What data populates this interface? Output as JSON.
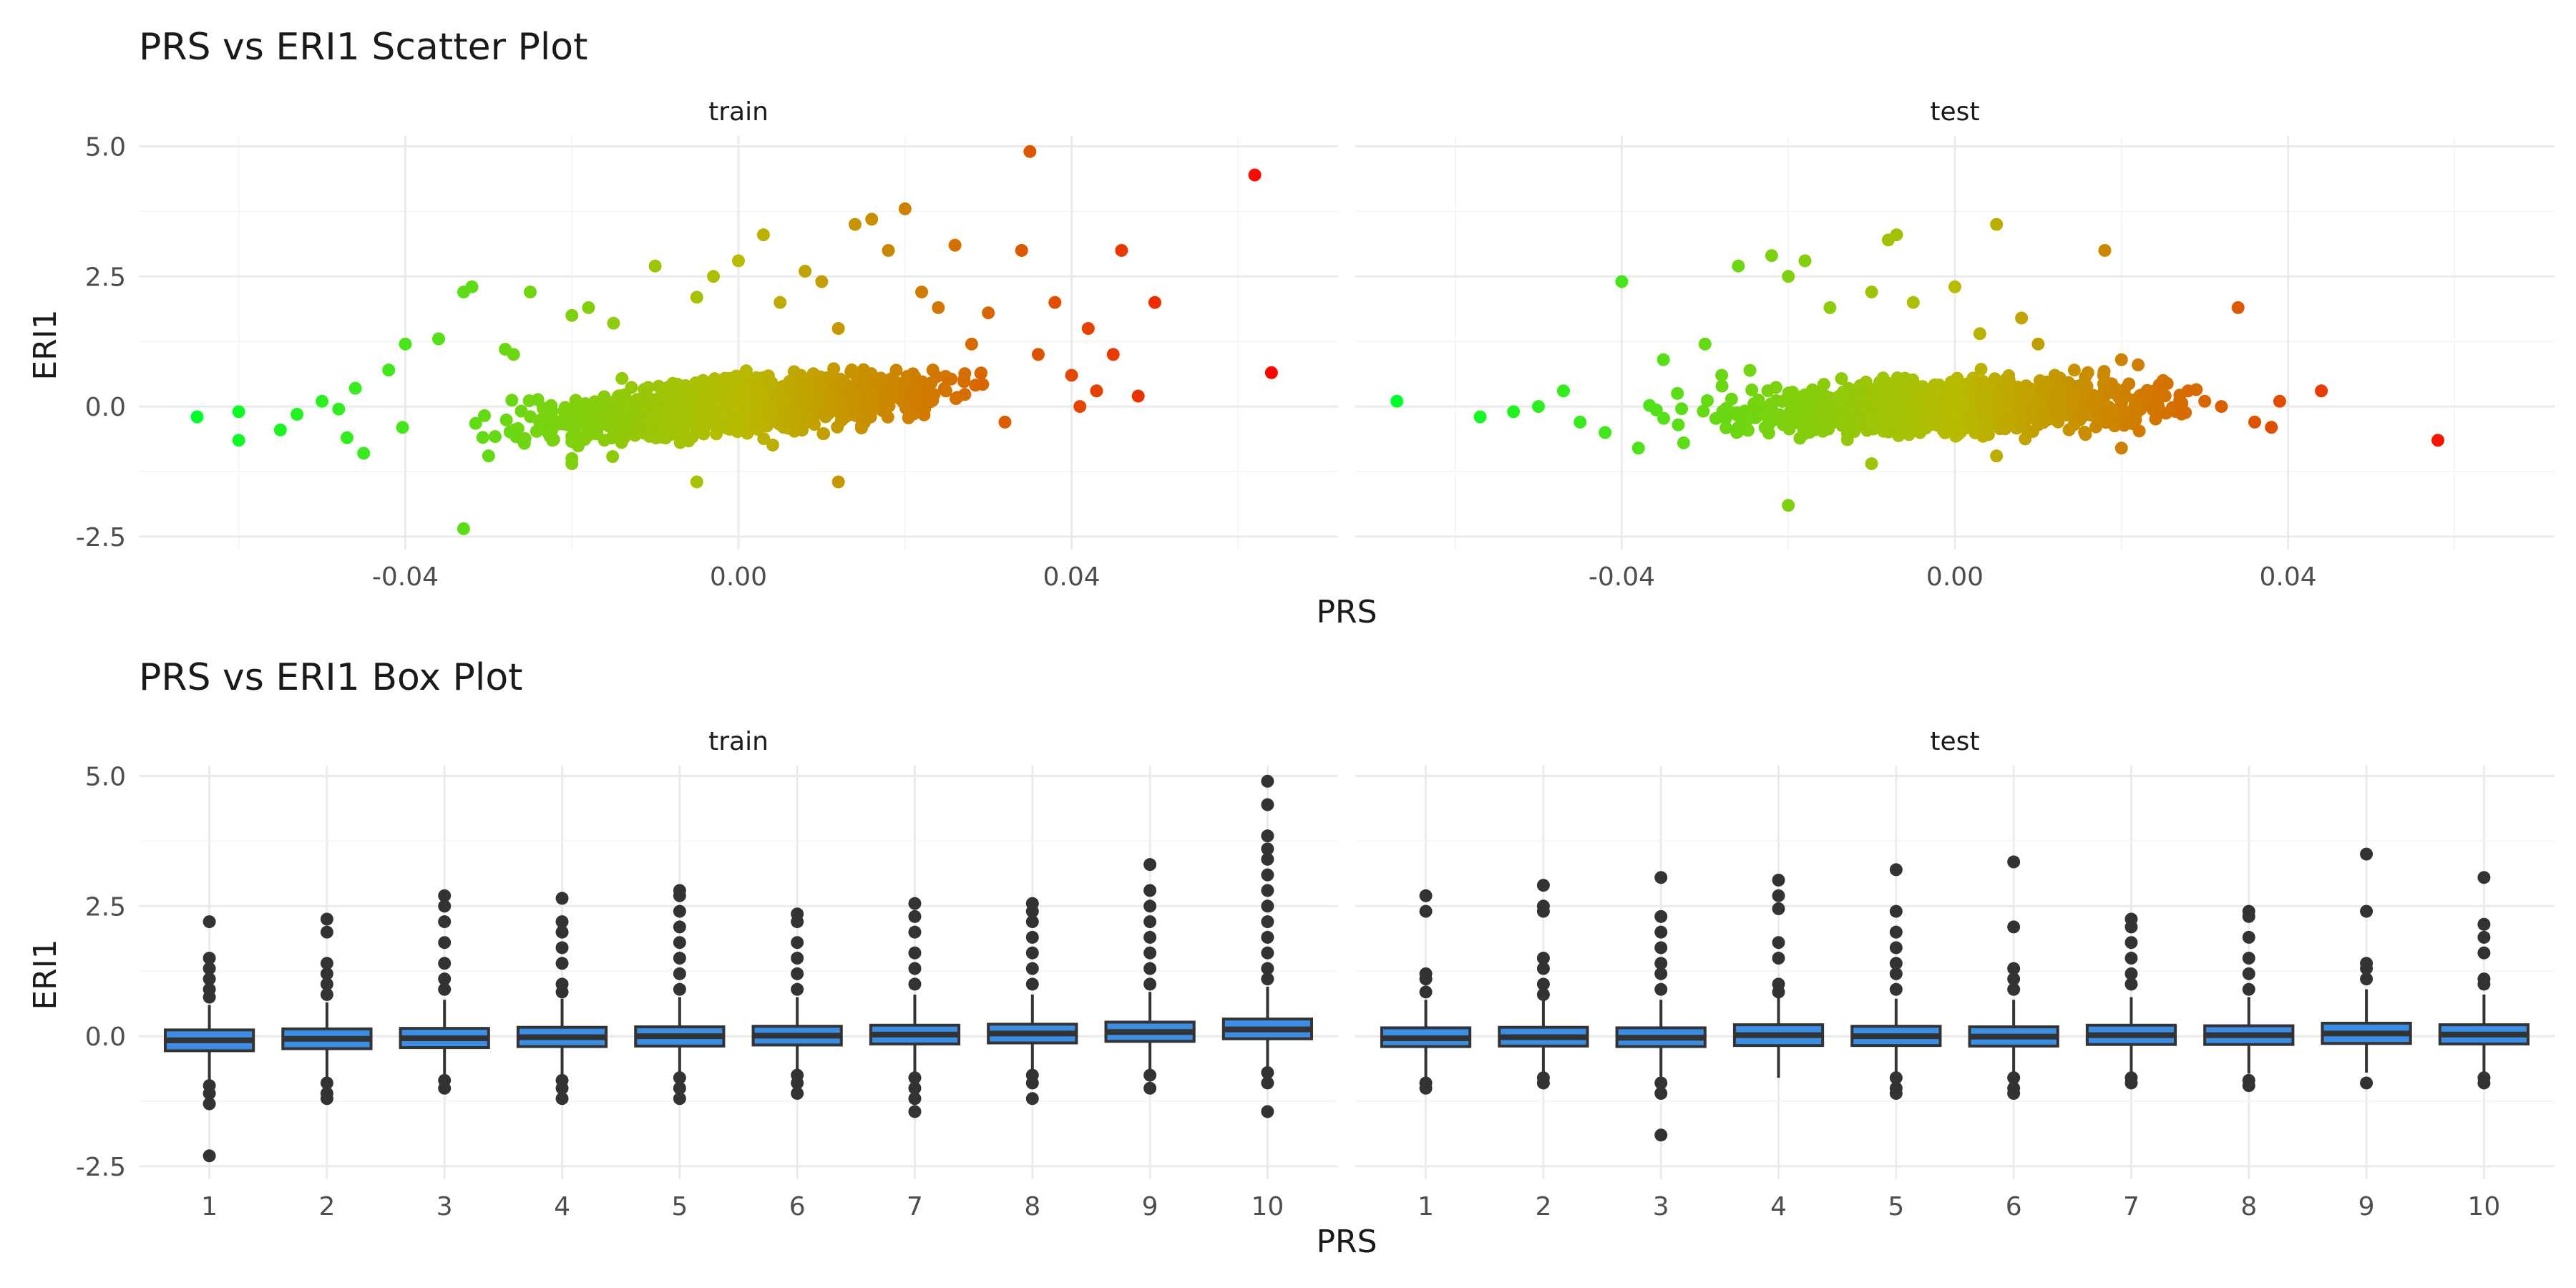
{
  "chart_data": [
    {
      "type": "scatter",
      "title": "PRS vs ERI1 Scatter Plot",
      "xlabel": "PRS",
      "ylabel": "ERI1",
      "xlim": [
        -0.072,
        0.072
      ],
      "ylim": [
        -2.75,
        5.2
      ],
      "x_ticks": [
        -0.04,
        0.0,
        0.04
      ],
      "x_tick_labels": [
        "-0.04",
        "0.00",
        "0.04"
      ],
      "y_ticks": [
        -2.5,
        0.0,
        2.5,
        5.0
      ],
      "y_tick_labels": [
        "-2.5",
        "0.0",
        "2.5",
        "5.0"
      ],
      "grid": true,
      "legend": "none",
      "color_gradient": {
        "low": "#00ff2a",
        "mid": "#b8bb00",
        "high": "#ff0000"
      },
      "panels": [
        {
          "name": "train",
          "points": [
            [
              -0.065,
              -0.2
            ],
            [
              -0.06,
              -0.1
            ],
            [
              -0.06,
              -0.65
            ],
            [
              -0.055,
              -0.45
            ],
            [
              -0.053,
              -0.15
            ],
            [
              -0.05,
              0.1
            ],
            [
              -0.048,
              -0.05
            ],
            [
              -0.047,
              -0.6
            ],
            [
              -0.046,
              0.35
            ],
            [
              -0.045,
              -0.9
            ],
            [
              -0.042,
              0.7
            ],
            [
              -0.04,
              1.2
            ],
            [
              -0.036,
              1.3
            ],
            [
              -0.033,
              2.2
            ],
            [
              -0.032,
              2.3
            ],
            [
              -0.028,
              1.1
            ],
            [
              -0.027,
              1.0
            ],
            [
              -0.025,
              2.2
            ],
            [
              -0.02,
              1.75
            ],
            [
              -0.02,
              -1.0
            ],
            [
              -0.018,
              1.9
            ],
            [
              -0.015,
              1.6
            ],
            [
              -0.01,
              2.7
            ],
            [
              -0.005,
              2.1
            ],
            [
              -0.003,
              2.5
            ],
            [
              0.0,
              2.8
            ],
            [
              0.003,
              3.3
            ],
            [
              0.005,
              2.0
            ],
            [
              0.008,
              2.6
            ],
            [
              0.01,
              2.4
            ],
            [
              0.012,
              1.5
            ],
            [
              0.014,
              3.5
            ],
            [
              0.016,
              3.6
            ],
            [
              0.018,
              3.0
            ],
            [
              0.02,
              3.8
            ],
            [
              0.022,
              2.2
            ],
            [
              0.024,
              1.9
            ],
            [
              0.026,
              3.1
            ],
            [
              0.028,
              1.2
            ],
            [
              0.03,
              1.8
            ],
            [
              0.032,
              -0.3
            ],
            [
              0.034,
              3.0
            ],
            [
              0.035,
              4.9
            ],
            [
              0.036,
              1.0
            ],
            [
              0.038,
              2.0
            ],
            [
              0.04,
              0.6
            ],
            [
              0.041,
              0.0
            ],
            [
              0.042,
              1.5
            ],
            [
              0.043,
              0.3
            ],
            [
              0.045,
              1.0
            ],
            [
              0.046,
              3.0
            ],
            [
              0.048,
              0.2
            ],
            [
              0.05,
              2.0
            ],
            [
              0.062,
              4.45
            ],
            [
              0.064,
              0.65
            ],
            [
              -0.033,
              -2.35
            ],
            [
              -0.005,
              -1.45
            ],
            [
              0.012,
              -1.45
            ],
            [
              -0.02,
              -1.1
            ],
            [
              -0.03,
              -0.95
            ]
          ]
        },
        {
          "name": "test",
          "points": [
            [
              -0.067,
              0.1
            ],
            [
              -0.057,
              -0.2
            ],
            [
              -0.053,
              -0.1
            ],
            [
              -0.05,
              0.0
            ],
            [
              -0.047,
              0.3
            ],
            [
              -0.045,
              -0.3
            ],
            [
              -0.042,
              -0.5
            ],
            [
              -0.04,
              2.4
            ],
            [
              -0.038,
              -0.8
            ],
            [
              -0.035,
              0.9
            ],
            [
              -0.03,
              1.2
            ],
            [
              -0.028,
              0.6
            ],
            [
              -0.026,
              2.7
            ],
            [
              -0.022,
              2.9
            ],
            [
              -0.02,
              2.5
            ],
            [
              -0.018,
              2.8
            ],
            [
              -0.015,
              1.9
            ],
            [
              -0.01,
              2.2
            ],
            [
              -0.008,
              3.2
            ],
            [
              -0.007,
              3.3
            ],
            [
              -0.005,
              2.0
            ],
            [
              0.0,
              2.3
            ],
            [
              0.003,
              1.4
            ],
            [
              0.005,
              3.5
            ],
            [
              0.008,
              1.7
            ],
            [
              0.01,
              1.2
            ],
            [
              0.012,
              0.6
            ],
            [
              0.015,
              0.4
            ],
            [
              0.018,
              3.0
            ],
            [
              0.02,
              0.9
            ],
            [
              0.022,
              0.8
            ],
            [
              0.025,
              0.5
            ],
            [
              0.028,
              0.3
            ],
            [
              0.03,
              0.1
            ],
            [
              0.032,
              0.0
            ],
            [
              0.034,
              1.9
            ],
            [
              0.036,
              -0.3
            ],
            [
              0.038,
              -0.4
            ],
            [
              0.039,
              0.1
            ],
            [
              0.044,
              0.3
            ],
            [
              0.058,
              -0.65
            ],
            [
              -0.02,
              -1.9
            ],
            [
              -0.01,
              -1.1
            ],
            [
              0.005,
              -0.95
            ],
            [
              0.02,
              -0.8
            ]
          ]
        }
      ]
    },
    {
      "type": "box",
      "title": "PRS vs ERI1 Box Plot",
      "xlabel": "PRS",
      "ylabel": "ERI1",
      "categories": [
        "1",
        "2",
        "3",
        "4",
        "5",
        "6",
        "7",
        "8",
        "9",
        "10"
      ],
      "ylim": [
        -2.75,
        5.2
      ],
      "y_ticks": [
        -2.5,
        0.0,
        2.5,
        5.0
      ],
      "y_tick_labels": [
        "-2.5",
        "0.0",
        "2.5",
        "5.0"
      ],
      "grid": true,
      "box_fill": "#3a8ee6",
      "box_stroke": "#333333",
      "panels": [
        {
          "name": "train",
          "boxes": [
            {
              "category": "1",
              "q1": -0.28,
              "median": -0.08,
              "q3": 0.12,
              "whisker_low": -0.85,
              "whisker_high": 0.6,
              "outliers": [
                2.2,
                1.5,
                1.3,
                1.1,
                0.9,
                0.75,
                -0.95,
                -1.1,
                -1.3,
                -2.3
              ]
            },
            {
              "category": "2",
              "q1": -0.24,
              "median": -0.05,
              "q3": 0.14,
              "whisker_low": -0.8,
              "whisker_high": 0.65,
              "outliers": [
                2.25,
                2.0,
                1.4,
                1.2,
                1.0,
                0.8,
                -0.9,
                -1.1,
                -1.2
              ]
            },
            {
              "category": "3",
              "q1": -0.22,
              "median": -0.04,
              "q3": 0.15,
              "whisker_low": -0.8,
              "whisker_high": 0.7,
              "outliers": [
                2.7,
                2.5,
                2.2,
                1.8,
                1.4,
                1.1,
                0.9,
                -0.85,
                -1.0
              ]
            },
            {
              "category": "4",
              "q1": -0.2,
              "median": -0.02,
              "q3": 0.17,
              "whisker_low": -0.78,
              "whisker_high": 0.72,
              "outliers": [
                2.65,
                2.2,
                2.0,
                1.7,
                1.4,
                1.0,
                0.85,
                -0.85,
                -1.0,
                -1.2
              ]
            },
            {
              "category": "5",
              "q1": -0.19,
              "median": 0.0,
              "q3": 0.18,
              "whisker_low": -0.75,
              "whisker_high": 0.75,
              "outliers": [
                2.8,
                2.7,
                2.4,
                2.1,
                1.8,
                1.5,
                1.2,
                0.9,
                -0.8,
                -1.0,
                -1.2
              ]
            },
            {
              "category": "6",
              "q1": -0.17,
              "median": 0.01,
              "q3": 0.19,
              "whisker_low": -0.72,
              "whisker_high": 0.75,
              "outliers": [
                2.35,
                2.2,
                1.8,
                1.5,
                1.2,
                0.9,
                -0.75,
                -0.9,
                -1.1
              ]
            },
            {
              "category": "7",
              "q1": -0.15,
              "median": 0.03,
              "q3": 0.21,
              "whisker_low": -0.7,
              "whisker_high": 0.8,
              "outliers": [
                2.55,
                2.3,
                2.0,
                1.6,
                1.3,
                1.0,
                -0.8,
                -1.0,
                -1.2,
                -1.45
              ]
            },
            {
              "category": "8",
              "q1": -0.13,
              "median": 0.05,
              "q3": 0.23,
              "whisker_low": -0.68,
              "whisker_high": 0.8,
              "outliers": [
                2.55,
                2.4,
                2.2,
                1.9,
                1.6,
                1.3,
                1.0,
                -0.75,
                -0.9,
                -1.2
              ]
            },
            {
              "category": "9",
              "q1": -0.1,
              "median": 0.08,
              "q3": 0.27,
              "whisker_low": -0.65,
              "whisker_high": 0.85,
              "outliers": [
                3.3,
                2.8,
                2.5,
                2.2,
                1.9,
                1.6,
                1.3,
                1.0,
                -0.75,
                -1.0
              ]
            },
            {
              "category": "10",
              "q1": -0.05,
              "median": 0.13,
              "q3": 0.33,
              "whisker_low": -0.6,
              "whisker_high": 0.95,
              "outliers": [
                4.9,
                4.45,
                3.85,
                3.6,
                3.4,
                3.1,
                2.8,
                2.5,
                2.2,
                1.9,
                1.6,
                1.3,
                1.1,
                -0.7,
                -0.9,
                -1.45
              ]
            }
          ]
        },
        {
          "name": "test",
          "boxes": [
            {
              "category": "1",
              "q1": -0.2,
              "median": -0.04,
              "q3": 0.16,
              "whisker_low": -0.8,
              "whisker_high": 0.7,
              "outliers": [
                2.7,
                2.4,
                1.2,
                1.1,
                0.85,
                -0.9,
                -1.0
              ]
            },
            {
              "category": "2",
              "q1": -0.19,
              "median": -0.02,
              "q3": 0.17,
              "whisker_low": -0.75,
              "whisker_high": 0.7,
              "outliers": [
                2.9,
                2.5,
                2.4,
                1.5,
                1.3,
                1.0,
                0.8,
                -0.8,
                -0.9
              ]
            },
            {
              "category": "3",
              "q1": -0.2,
              "median": -0.03,
              "q3": 0.16,
              "whisker_low": -0.78,
              "whisker_high": 0.7,
              "outliers": [
                3.05,
                2.3,
                2.0,
                1.7,
                1.4,
                1.2,
                0.9,
                -0.9,
                -1.1,
                -1.9
              ]
            },
            {
              "category": "4",
              "q1": -0.18,
              "median": 0.02,
              "q3": 0.22,
              "whisker_low": -0.8,
              "whisker_high": 0.75,
              "outliers": [
                3.0,
                2.7,
                2.45,
                1.8,
                1.5,
                1.0,
                0.85
              ]
            },
            {
              "category": "5",
              "q1": -0.18,
              "median": 0.0,
              "q3": 0.19,
              "whisker_low": -0.75,
              "whisker_high": 0.72,
              "outliers": [
                3.2,
                2.4,
                2.0,
                1.7,
                1.4,
                1.2,
                0.9,
                -0.8,
                -1.0,
                -1.1
              ]
            },
            {
              "category": "6",
              "q1": -0.19,
              "median": -0.01,
              "q3": 0.18,
              "whisker_low": -0.76,
              "whisker_high": 0.7,
              "outliers": [
                3.35,
                2.1,
                1.3,
                1.1,
                0.9,
                -0.8,
                -1.0,
                -1.1
              ]
            },
            {
              "category": "7",
              "q1": -0.16,
              "median": 0.02,
              "q3": 0.21,
              "whisker_low": -0.72,
              "whisker_high": 0.75,
              "outliers": [
                2.25,
                2.1,
                1.8,
                1.5,
                1.2,
                1.0,
                -0.8,
                -0.9
              ]
            },
            {
              "category": "8",
              "q1": -0.16,
              "median": 0.02,
              "q3": 0.2,
              "whisker_low": -0.72,
              "whisker_high": 0.75,
              "outliers": [
                2.4,
                2.3,
                1.9,
                1.5,
                1.2,
                0.9,
                -0.85,
                -0.95
              ]
            },
            {
              "category": "9",
              "q1": -0.14,
              "median": 0.05,
              "q3": 0.25,
              "whisker_low": -0.7,
              "whisker_high": 0.9,
              "outliers": [
                3.5,
                2.4,
                1.4,
                1.3,
                1.1,
                -0.9
              ]
            },
            {
              "category": "10",
              "q1": -0.15,
              "median": 0.03,
              "q3": 0.22,
              "whisker_low": -0.72,
              "whisker_high": 0.8,
              "outliers": [
                3.05,
                2.15,
                1.9,
                1.6,
                1.1,
                1.0,
                -0.8,
                -0.9
              ]
            }
          ]
        }
      ]
    }
  ]
}
